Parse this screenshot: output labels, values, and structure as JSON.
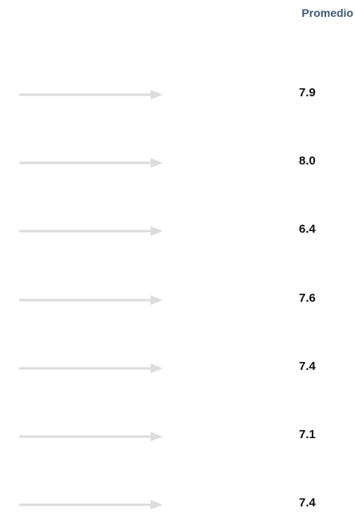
{
  "table": {
    "header": "Promedio",
    "rows": [
      "7.9",
      "8.0",
      "6.4",
      "7.6",
      "7.4",
      "7.1",
      "7.4"
    ]
  }
}
